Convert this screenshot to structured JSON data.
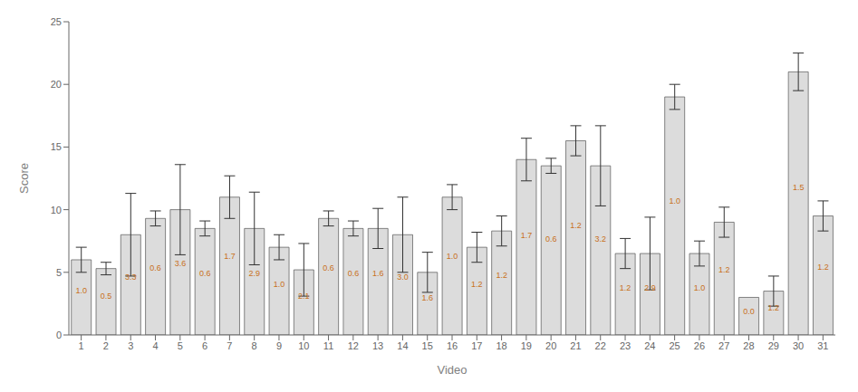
{
  "chart_data": {
    "type": "bar",
    "categories": [
      "1",
      "2",
      "3",
      "4",
      "5",
      "6",
      "7",
      "8",
      "9",
      "10",
      "11",
      "12",
      "13",
      "14",
      "15",
      "16",
      "17",
      "18",
      "19",
      "20",
      "21",
      "22",
      "23",
      "24",
      "25",
      "26",
      "27",
      "28",
      "29",
      "30",
      "31"
    ],
    "values": [
      6.0,
      5.3,
      8.0,
      9.3,
      10.0,
      8.5,
      11.0,
      8.5,
      7.0,
      5.2,
      9.3,
      8.5,
      8.5,
      8.0,
      5.0,
      11.0,
      7.0,
      8.3,
      14.0,
      13.5,
      15.5,
      13.5,
      6.5,
      6.5,
      19.0,
      6.5,
      9.0,
      3.0,
      3.5,
      21.0,
      9.5
    ],
    "errors": [
      1.0,
      0.5,
      3.3,
      0.6,
      3.6,
      0.6,
      1.7,
      2.9,
      1.0,
      2.1,
      0.6,
      0.6,
      1.6,
      3.0,
      1.6,
      1.0,
      1.2,
      1.2,
      1.7,
      0.6,
      1.2,
      3.2,
      1.2,
      2.9,
      1.0,
      1.0,
      1.2,
      0.0,
      1.2,
      1.5,
      1.2
    ],
    "error_labels": [
      "1.0",
      "0.5",
      "3.3",
      "0.6",
      "3.6",
      "0.6",
      "1.7",
      "2.9",
      "1.0",
      "2.1",
      "0.6",
      "0.6",
      "1.6",
      "3.0",
      "1.6",
      "1.0",
      "1.2",
      "1.2",
      "1.7",
      "0.6",
      "1.2",
      "3.2",
      "1.2",
      "2.9",
      "1.0",
      "1.0",
      "1.2",
      "0.0",
      "1.2",
      "1.5",
      "1.2"
    ],
    "color": "#dcdcdc",
    "xlabel": "Video",
    "ylabel": "Score",
    "ylim": [
      0,
      25
    ],
    "yticks": [
      0,
      5,
      10,
      15,
      20,
      25
    ],
    "grid": false
  }
}
